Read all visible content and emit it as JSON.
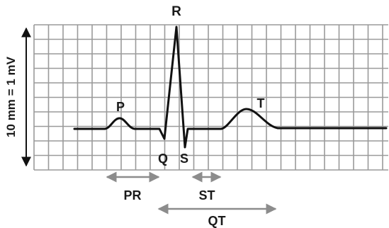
{
  "figure": {
    "scale_label": "10 mm = 1 mV",
    "waves": {
      "p": "P",
      "q": "Q",
      "r": "R",
      "s": "S",
      "t": "T"
    },
    "intervals": {
      "pr": "PR",
      "st": "ST",
      "qt": "QT"
    }
  },
  "colors": {
    "grid": "#9a9a9a",
    "trace": "#111111",
    "arrow": "#8c8c8c",
    "text": "#1a1a1a"
  }
}
